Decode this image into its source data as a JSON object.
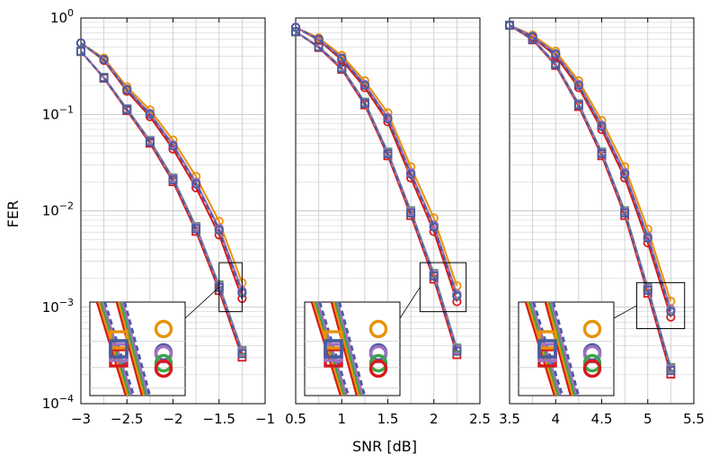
{
  "chart_data": {
    "type": "line",
    "ylabel": "FER",
    "xlabel": "SNR [dB]",
    "yscale": "log",
    "ylim": [
      0.0001,
      1
    ],
    "y_ticks": [
      {
        "base": "10",
        "exp": "0"
      },
      {
        "base": "10",
        "exp": "−1"
      },
      {
        "base": "10",
        "exp": "−2"
      },
      {
        "base": "10",
        "exp": "−3"
      },
      {
        "base": "10",
        "exp": "−4"
      }
    ],
    "grid": true,
    "colors": [
      "#d7191c",
      "#e8920a",
      "#3aa64a",
      "#a070c0",
      "#4a5aa0"
    ],
    "panels": [
      {
        "xlim": [
          -3,
          -1
        ],
        "x_ticks": [
          "−3",
          "−2.5",
          "−2",
          "−1.5",
          "−1"
        ],
        "x_tick_values": [
          -3,
          -2.5,
          -2,
          -1.5,
          -1
        ],
        "square_curve": {
          "x": [
            -3,
            -2.75,
            -2.5,
            -2.25,
            -2,
            -1.75,
            -1.5,
            -1.25
          ],
          "y": [
            0.45,
            0.24,
            0.112,
            0.052,
            0.021,
            0.0065,
            0.0016,
            0.00033
          ]
        },
        "circle_curve": {
          "x": [
            -3,
            -2.75,
            -2.5,
            -2.25,
            -2,
            -1.75,
            -1.5,
            -1.25
          ],
          "y": [
            0.55,
            0.37,
            0.18,
            0.1,
            0.047,
            0.019,
            0.0063,
            0.0014
          ]
        },
        "zoom_x": [
          -1.5,
          -1.25
        ],
        "zoom_y": [
          0.0009,
          0.0029
        ]
      },
      {
        "xlim": [
          0.5,
          2.5
        ],
        "x_ticks": [
          "0.5",
          "1",
          "1.5",
          "2",
          "2.5"
        ],
        "x_tick_values": [
          0.5,
          1,
          1.5,
          2,
          2.5
        ],
        "square_curve": {
          "x": [
            0.5,
            0.75,
            1,
            1.25,
            1.5,
            1.75,
            2,
            2.25
          ],
          "y": [
            0.72,
            0.5,
            0.3,
            0.13,
            0.039,
            0.0095,
            0.0021,
            0.00035
          ]
        },
        "circle_curve": {
          "x": [
            0.5,
            0.75,
            1,
            1.25,
            1.5,
            1.75,
            2,
            2.25
          ],
          "y": [
            0.8,
            0.6,
            0.38,
            0.2,
            0.09,
            0.024,
            0.0068,
            0.0013
          ]
        },
        "zoom_x": [
          1.85,
          2.35
        ],
        "zoom_y": [
          0.0009,
          0.0029
        ]
      },
      {
        "xlim": [
          3.5,
          5.5
        ],
        "x_ticks": [
          "3.5",
          "4",
          "4.5",
          "5",
          "5.5"
        ],
        "x_tick_values": [
          3.5,
          4,
          4.5,
          5,
          5.5
        ],
        "square_curve": {
          "x": [
            3.5,
            3.75,
            4,
            4.25,
            4.5,
            4.75,
            5,
            5.25
          ],
          "y": [
            0.84,
            0.6,
            0.33,
            0.125,
            0.039,
            0.0095,
            0.0015,
            0.00022
          ]
        },
        "circle_curve": {
          "x": [
            3.5,
            3.75,
            4,
            4.25,
            4.5,
            4.75,
            5,
            5.25
          ],
          "y": [
            0.84,
            0.64,
            0.42,
            0.2,
            0.075,
            0.024,
            0.0052,
            0.0009
          ]
        },
        "zoom_x": [
          4.88,
          5.4
        ],
        "zoom_y": [
          0.0006,
          0.0018
        ]
      }
    ]
  }
}
